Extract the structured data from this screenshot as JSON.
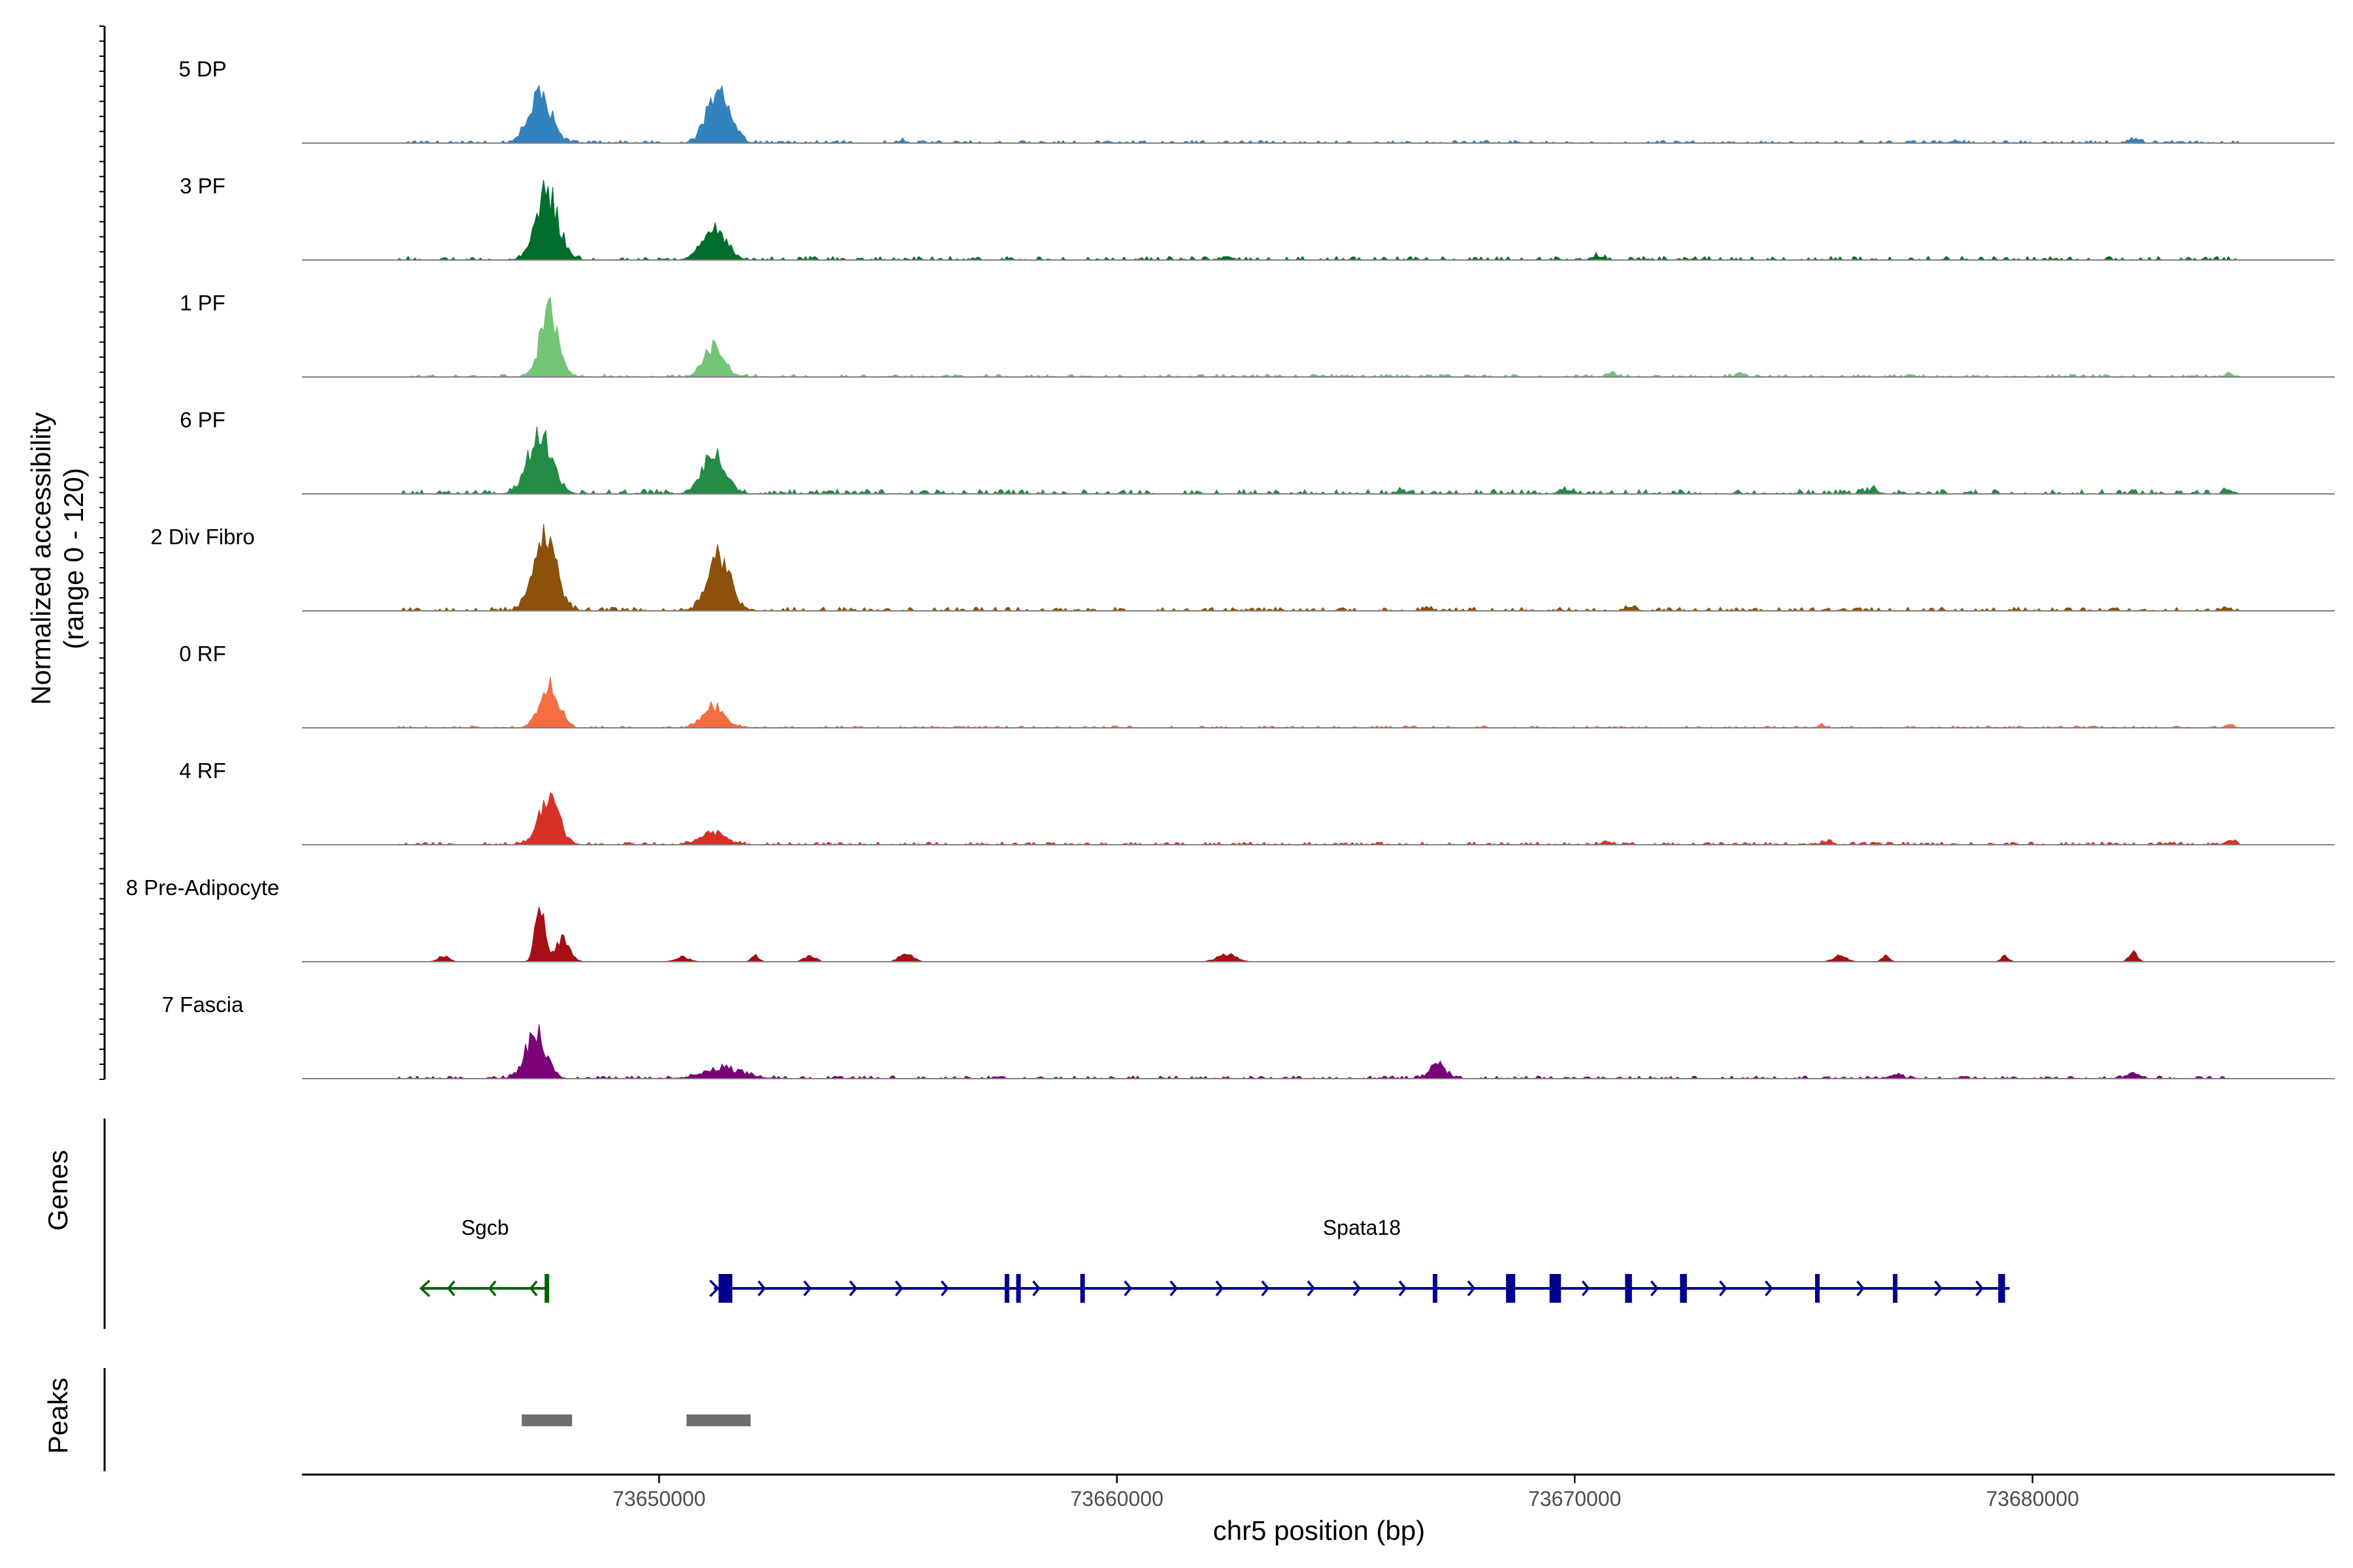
{
  "chart_data": {
    "type": "area",
    "title": "",
    "ylabel": "Normalized accessibility",
    "ylabel_range": "(range 0 - 120)",
    "xlabel": "chr5 position (bp)",
    "xlim": [
      73642200,
      73686600
    ],
    "ylim": [
      0,
      120
    ],
    "x_ticks": [
      73650000,
      73660000,
      73670000,
      73680000
    ],
    "x_tick_labels": [
      "73650000",
      "73660000",
      "73670000",
      "73680000"
    ],
    "tracks": [
      {
        "name": "5 DP",
        "color": "#3182BD",
        "peaks": [
          [
            73647400,
            72,
            240
          ],
          [
            73651300,
            75,
            240
          ],
          [
            73682200,
            6,
            120
          ],
          [
            73678300,
            3,
            120
          ],
          [
            73655300,
            3,
            100
          ]
        ],
        "background": [
          73644500,
          73684500,
          3
        ]
      },
      {
        "name": "3 PF",
        "color": "#006D2C",
        "peaks": [
          [
            73647550,
            90,
            240
          ],
          [
            73651200,
            42,
            260
          ],
          [
            73670500,
            5,
            120
          ],
          [
            73662400,
            4,
            120
          ]
        ],
        "background": [
          73644300,
          73684500,
          4
        ]
      },
      {
        "name": "1 PF",
        "color": "#74C476",
        "peaks": [
          [
            73647600,
            88,
            200
          ],
          [
            73651200,
            38,
            220
          ],
          [
            73673600,
            5,
            100
          ],
          [
            73670800,
            5,
            100
          ],
          [
            73684300,
            4,
            80
          ]
        ],
        "background": [
          73644500,
          73684500,
          3
        ]
      },
      {
        "name": "6 PF",
        "color": "#238B45",
        "peaks": [
          [
            73647400,
            85,
            260
          ],
          [
            73651200,
            48,
            260
          ],
          [
            73669800,
            5,
            140
          ],
          [
            73676500,
            5,
            140
          ],
          [
            73684300,
            5,
            100
          ],
          [
            73666200,
            4,
            100
          ]
        ],
        "background": [
          73644300,
          73684500,
          5
        ]
      },
      {
        "name": "2 Div Fibro",
        "color": "#8C510A",
        "peaks": [
          [
            73647500,
            110,
            240
          ],
          [
            73651300,
            75,
            240
          ],
          [
            73671200,
            5,
            120
          ],
          [
            73666800,
            4,
            100
          ],
          [
            73684200,
            4,
            100
          ]
        ],
        "background": [
          73644300,
          73684500,
          4
        ]
      },
      {
        "name": "0 RF",
        "color": "#F46D43",
        "peaks": [
          [
            73647600,
            65,
            200
          ],
          [
            73651200,
            30,
            240
          ],
          [
            73684300,
            5,
            80
          ],
          [
            73675400,
            4,
            80
          ]
        ],
        "background": [
          73644300,
          73684500,
          2
        ]
      },
      {
        "name": "4 RF",
        "color": "#D73027",
        "peaks": [
          [
            73647600,
            62,
            220
          ],
          [
            73651200,
            18,
            260
          ],
          [
            73670700,
            5,
            100
          ],
          [
            73675500,
            5,
            100
          ],
          [
            73684300,
            6,
            100
          ]
        ],
        "background": [
          73644300,
          73684500,
          3
        ]
      },
      {
        "name": "8 Pre-Adipocyte",
        "color": "#A50F15",
        "peaks": [
          [
            73647400,
            75,
            100
          ],
          [
            73647900,
            32,
            150
          ],
          [
            73645300,
            8,
            120
          ],
          [
            73650500,
            7,
            150
          ],
          [
            73652100,
            9,
            80
          ],
          [
            73653300,
            9,
            120
          ],
          [
            73655400,
            11,
            150
          ],
          [
            73662400,
            10,
            200
          ],
          [
            73675800,
            8,
            150
          ],
          [
            73676800,
            9,
            80
          ],
          [
            73679400,
            8,
            80
          ],
          [
            73682200,
            13,
            90
          ]
        ],
        "background": null
      },
      {
        "name": "7 Fascia",
        "color": "#7A0177",
        "peaks": [
          [
            73647300,
            62,
            220
          ],
          [
            73651400,
            14,
            420
          ],
          [
            73667000,
            18,
            180
          ],
          [
            73682200,
            9,
            140
          ],
          [
            73677000,
            5,
            140
          ]
        ],
        "background": [
          73644300,
          73684500,
          3
        ]
      }
    ],
    "genes": [
      {
        "name": "Sgcb",
        "strand": "-",
        "color": "#006400",
        "start": 73644800,
        "end": 73647600,
        "exons": [
          [
            73647500,
            73647600
          ]
        ],
        "arrows": [
          73645400,
          73646300,
          73647200
        ]
      },
      {
        "name": "Spata18",
        "strand": "+",
        "color": "#00008B",
        "start": 73651200,
        "end": 73679500,
        "exons": [
          [
            73651300,
            73651600
          ],
          [
            73657550,
            73657650
          ],
          [
            73657800,
            73657900
          ],
          [
            73659200,
            73659300
          ],
          [
            73666900,
            73667000
          ],
          [
            73668500,
            73668700
          ],
          [
            73669450,
            73669700
          ],
          [
            73671100,
            73671250
          ],
          [
            73672300,
            73672450
          ],
          [
            73675250,
            73675350
          ],
          [
            73676950,
            73677050
          ],
          [
            73679250,
            73679400
          ]
        ],
        "arrows": [
          73652300,
          73653300,
          73654300,
          73655300,
          73656300,
          73658300,
          73660300,
          73661300,
          73662300,
          73663300,
          73664300,
          73665300,
          73666300,
          73667800,
          73670300,
          73671800,
          73673300,
          73674300,
          73676300,
          73678000,
          73678900
        ]
      }
    ],
    "peak_regions": [
      [
        73647000,
        73648100
      ],
      [
        73650600,
        73652000
      ]
    ],
    "panel_labels": {
      "genes": "Genes",
      "peaks": "Peaks"
    }
  }
}
